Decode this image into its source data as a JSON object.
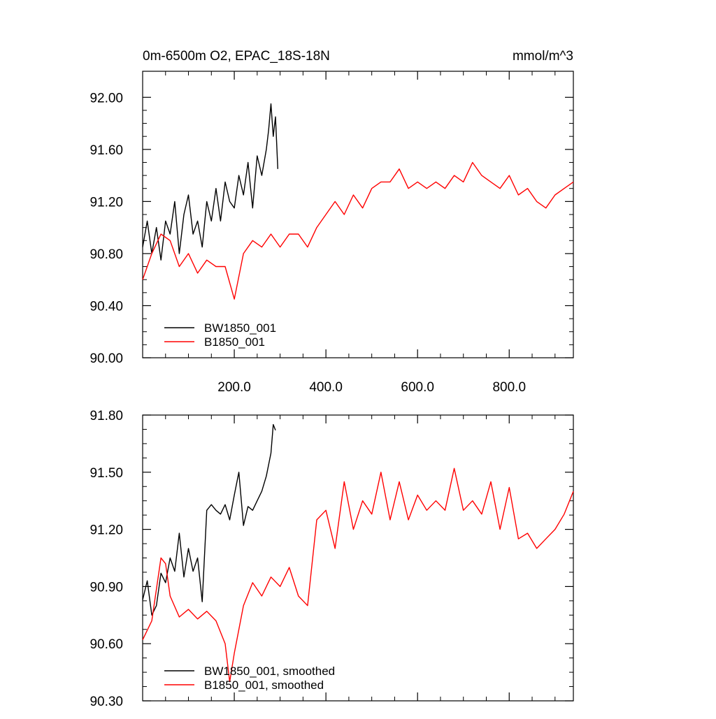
{
  "chart_data": [
    {
      "type": "line",
      "title_left": "0m-6500m O2, EPAC_18S-18N",
      "title_right": "mmol/m^3",
      "xlim": [
        0,
        940
      ],
      "ylim": [
        90.0,
        92.2
      ],
      "yticks": [
        {
          "value": 90.0,
          "label": "90.00"
        },
        {
          "value": 90.4,
          "label": "90.40"
        },
        {
          "value": 90.8,
          "label": "90.80"
        },
        {
          "value": 91.2,
          "label": "91.20"
        },
        {
          "value": 91.6,
          "label": "91.60"
        },
        {
          "value": 92.0,
          "label": "92.00"
        }
      ],
      "xticks": [
        {
          "value": 200,
          "label": "200.0"
        },
        {
          "value": 400,
          "label": "400.0"
        },
        {
          "value": 600,
          "label": "600.0"
        },
        {
          "value": 800,
          "label": "800.0"
        }
      ],
      "legend_position": "bottom-left",
      "series": [
        {
          "name": "BW1850_001",
          "color": "#000000",
          "x": [
            0,
            10,
            20,
            30,
            40,
            50,
            60,
            70,
            80,
            90,
            100,
            110,
            120,
            130,
            140,
            150,
            160,
            170,
            180,
            190,
            200,
            210,
            220,
            230,
            240,
            250,
            260,
            270,
            275,
            280,
            285,
            290,
            295
          ],
          "values": [
            90.85,
            91.05,
            90.8,
            91.0,
            90.75,
            91.05,
            90.95,
            91.2,
            90.8,
            91.1,
            91.25,
            90.95,
            91.05,
            90.85,
            91.2,
            91.05,
            91.3,
            91.05,
            91.35,
            91.2,
            91.15,
            91.4,
            91.25,
            91.5,
            91.15,
            91.55,
            91.4,
            91.6,
            91.75,
            91.95,
            91.7,
            91.85,
            91.45
          ]
        },
        {
          "name": "B1850_001",
          "color": "#ff0000",
          "x": [
            0,
            20,
            40,
            60,
            80,
            100,
            120,
            140,
            160,
            180,
            200,
            220,
            240,
            260,
            280,
            300,
            320,
            340,
            360,
            380,
            400,
            420,
            440,
            460,
            480,
            500,
            520,
            540,
            560,
            580,
            600,
            620,
            640,
            660,
            680,
            700,
            720,
            740,
            760,
            780,
            800,
            820,
            840,
            860,
            880,
            900,
            920,
            940
          ],
          "values": [
            90.6,
            90.8,
            90.95,
            90.9,
            90.7,
            90.8,
            90.65,
            90.75,
            90.7,
            90.7,
            90.45,
            90.8,
            90.9,
            90.85,
            90.95,
            90.85,
            90.95,
            90.95,
            90.85,
            91.0,
            91.1,
            91.2,
            91.1,
            91.25,
            91.15,
            91.3,
            91.35,
            91.35,
            91.45,
            91.3,
            91.35,
            91.3,
            91.35,
            91.3,
            91.4,
            91.35,
            91.5,
            91.4,
            91.35,
            91.3,
            91.4,
            91.25,
            91.3,
            91.2,
            91.15,
            91.25,
            91.3,
            91.35
          ]
        }
      ]
    },
    {
      "type": "line",
      "xlim": [
        0,
        940
      ],
      "ylim": [
        90.3,
        91.8
      ],
      "yticks": [
        {
          "value": 90.3,
          "label": "90.30"
        },
        {
          "value": 90.6,
          "label": "90.60"
        },
        {
          "value": 90.9,
          "label": "90.90"
        },
        {
          "value": 91.2,
          "label": "91.20"
        },
        {
          "value": 91.5,
          "label": "91.50"
        },
        {
          "value": 91.8,
          "label": "91.80"
        }
      ],
      "legend_position": "bottom-left",
      "series": [
        {
          "name": "BW1850_001, smoothed",
          "color": "#000000",
          "x": [
            0,
            10,
            20,
            30,
            40,
            50,
            60,
            70,
            80,
            90,
            100,
            110,
            120,
            130,
            140,
            150,
            160,
            170,
            180,
            190,
            200,
            210,
            220,
            230,
            240,
            250,
            260,
            270,
            280,
            285,
            290
          ],
          "values": [
            90.83,
            90.93,
            90.75,
            90.8,
            90.97,
            90.92,
            91.05,
            90.98,
            91.18,
            90.95,
            91.1,
            90.98,
            91.05,
            90.82,
            91.3,
            91.33,
            91.3,
            91.28,
            91.33,
            91.25,
            91.38,
            91.5,
            91.22,
            91.32,
            91.3,
            91.35,
            91.4,
            91.48,
            91.6,
            91.75,
            91.72
          ]
        },
        {
          "name": "B1850_001, smoothed",
          "color": "#ff0000",
          "x": [
            0,
            20,
            40,
            50,
            60,
            80,
            100,
            120,
            140,
            160,
            180,
            190,
            200,
            220,
            240,
            260,
            280,
            300,
            320,
            340,
            360,
            380,
            400,
            420,
            440,
            460,
            480,
            500,
            520,
            540,
            560,
            580,
            600,
            620,
            640,
            660,
            680,
            700,
            720,
            740,
            760,
            780,
            800,
            820,
            840,
            860,
            880,
            900,
            920,
            940
          ],
          "values": [
            90.62,
            90.72,
            91.05,
            91.02,
            90.85,
            90.74,
            90.78,
            90.73,
            90.77,
            90.72,
            90.6,
            90.4,
            90.55,
            90.8,
            90.92,
            90.85,
            90.95,
            90.9,
            91.0,
            90.85,
            90.8,
            91.25,
            91.3,
            91.1,
            91.45,
            91.2,
            91.35,
            91.28,
            91.5,
            91.25,
            91.45,
            91.25,
            91.38,
            91.3,
            91.35,
            91.3,
            91.52,
            91.3,
            91.35,
            91.28,
            91.45,
            91.2,
            91.42,
            91.15,
            91.18,
            91.1,
            91.15,
            91.2,
            91.28,
            91.4
          ]
        }
      ]
    }
  ]
}
